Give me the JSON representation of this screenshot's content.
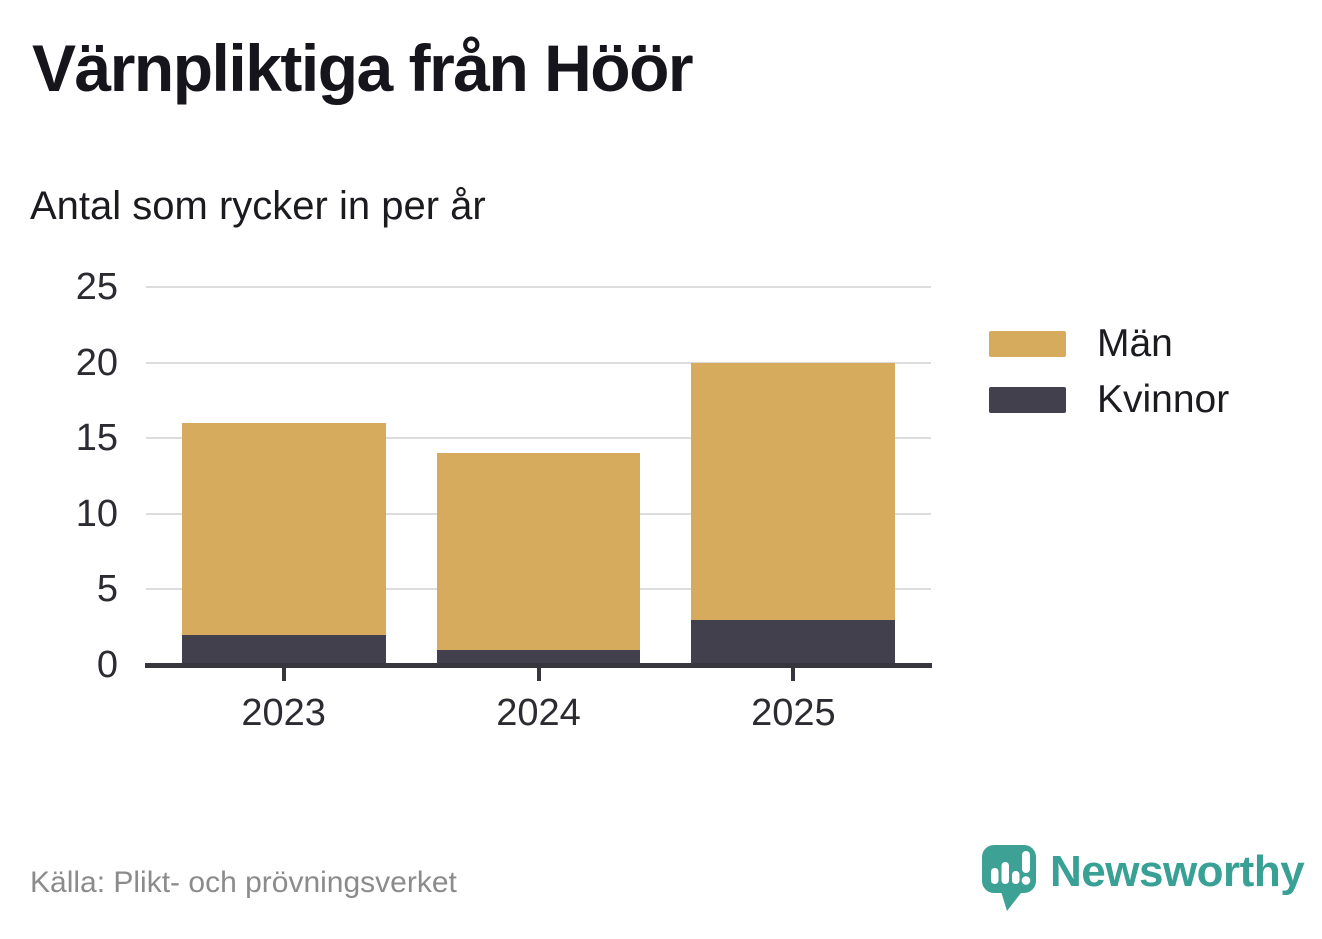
{
  "header": {
    "title": "Värnpliktiga från Höör",
    "subtitle": "Antal som rycker in per år"
  },
  "chart_data": {
    "type": "bar",
    "stacked": true,
    "title": "Värnpliktiga från Höör",
    "subtitle": "Antal som rycker in per år",
    "categories": [
      "2023",
      "2024",
      "2025"
    ],
    "series": [
      {
        "name": "Män",
        "color": "#D7AB5D",
        "values": [
          14,
          13,
          17
        ]
      },
      {
        "name": "Kvinnor",
        "color": "#42404D",
        "values": [
          2,
          1,
          3
        ]
      }
    ],
    "stack_order_bottom_to_top": [
      "Kvinnor",
      "Män"
    ],
    "totals": [
      16,
      14,
      20
    ],
    "xlabel": "",
    "ylabel": "",
    "ylim": [
      0,
      25
    ],
    "yticks": [
      0,
      5,
      10,
      15,
      20,
      25
    ],
    "grid": "horizontal",
    "legend_position": "right"
  },
  "footer": {
    "source": "Källa: Plikt- och prövningsverket",
    "brand": "Newsworthy",
    "brand_icon": "newsworthy-speech-bubble-bar-chart-icon"
  },
  "colors": {
    "men": "#D7AB5D",
    "women": "#42404D",
    "axis": "#37363f",
    "gridline": "#dcdcdc",
    "tick_label": "#2c2b31",
    "source_text": "#8b8b8b",
    "brand_teal": "#38a094",
    "background": "#ffffff"
  }
}
